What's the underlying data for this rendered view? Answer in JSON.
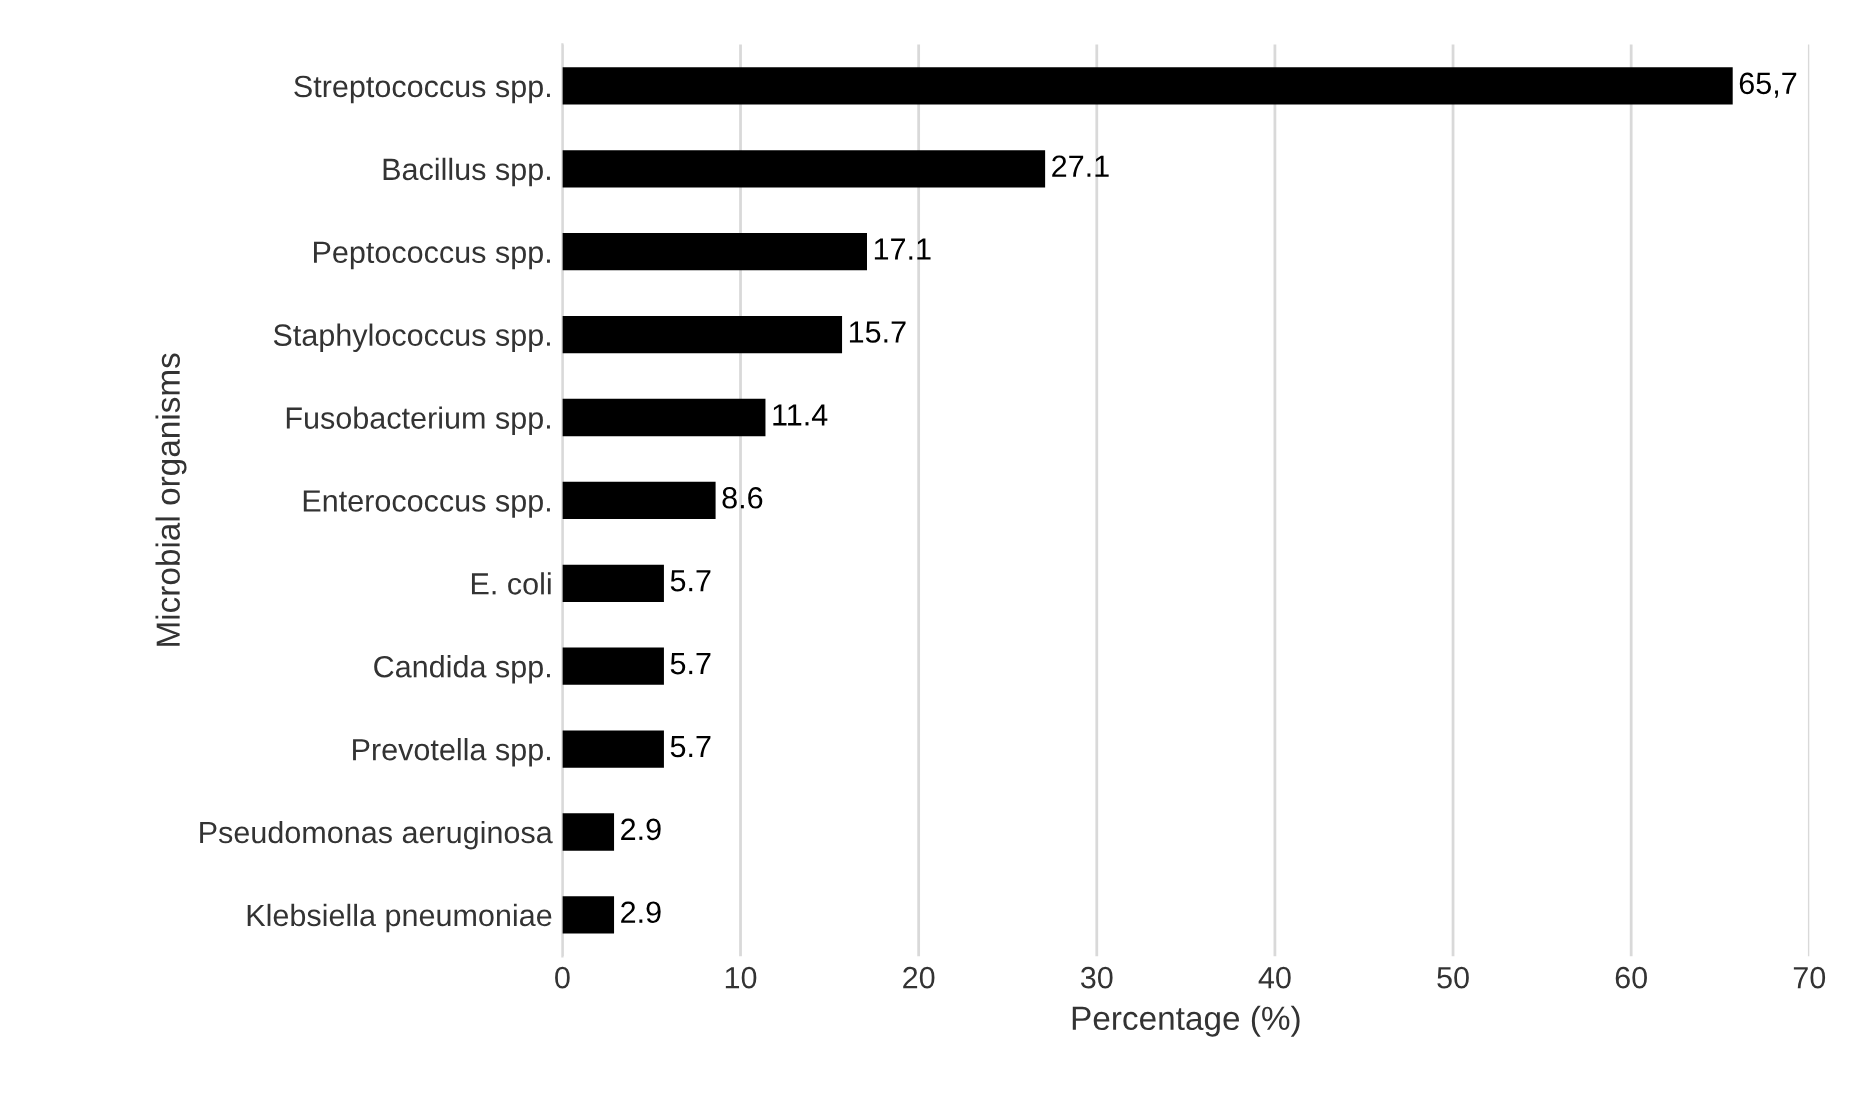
{
  "chart_data": {
    "type": "bar",
    "orientation": "horizontal",
    "xlabel": "Percentage (%)",
    "ylabel": "Microbial organisms",
    "categories": [
      "Streptococcus spp.",
      "Bacillus spp.",
      "Peptococcus spp.",
      "Staphylococcus spp.",
      "Fusobacterium spp.",
      "Enterococcus spp.",
      "E. coli",
      "Candida spp.",
      "Prevotella spp.",
      "Pseudomonas aeruginosa",
      "Klebsiella pneumoniae"
    ],
    "values": [
      65.7,
      27.1,
      17.1,
      15.7,
      11.4,
      8.6,
      5.7,
      5.7,
      5.7,
      2.9,
      2.9
    ],
    "value_labels": [
      "65,7",
      "27.1",
      "17.1",
      "15.7",
      "11.4",
      "8.6",
      "5.7",
      "5.7",
      "5.7",
      "2.9",
      "2.9"
    ],
    "color": "#000000",
    "xlim": [
      0,
      70
    ],
    "xticks": [
      0,
      10,
      20,
      30,
      40,
      50,
      60,
      70
    ],
    "grid": "x"
  }
}
